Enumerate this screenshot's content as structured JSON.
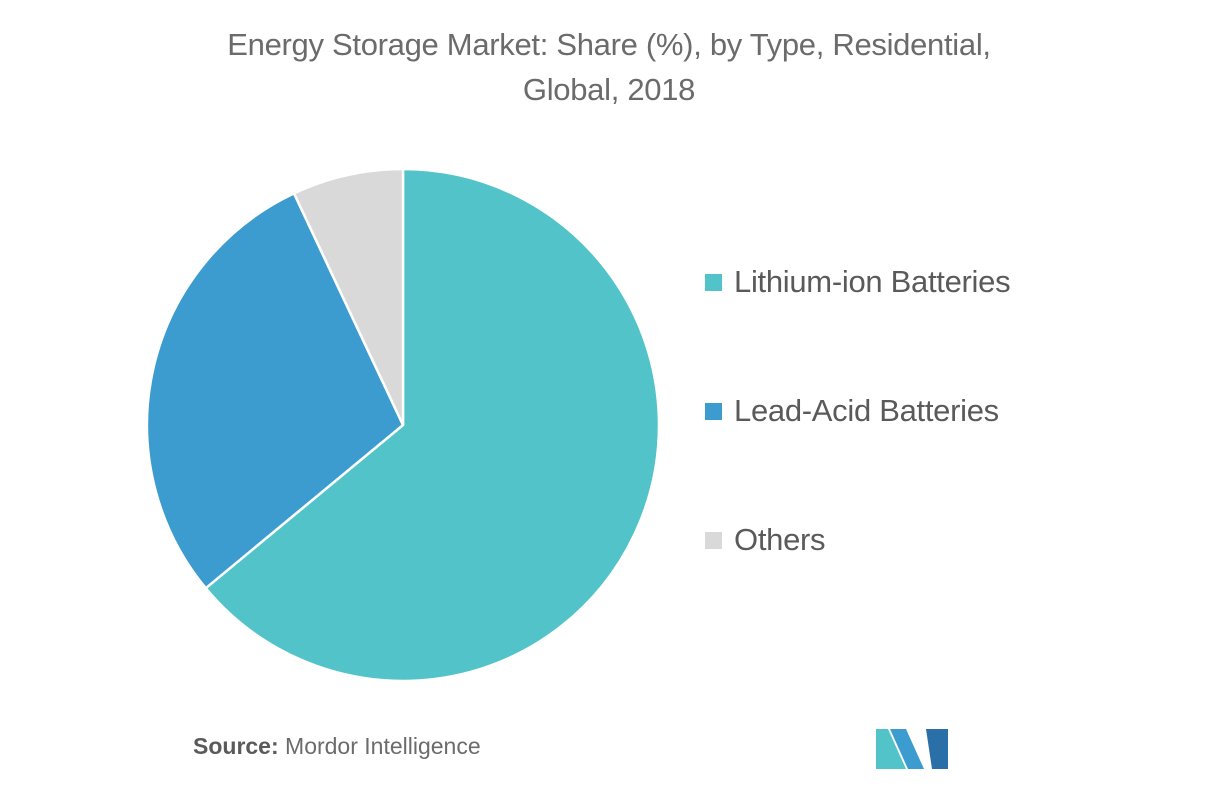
{
  "chart_data": {
    "type": "pie",
    "title_line1": "Energy Storage Market: Share (%), by Type, Residential,",
    "title_line2": "Global, 2018",
    "series": [
      {
        "name": "Lithium-ion Batteries",
        "value": 64,
        "color": "#52c4c9"
      },
      {
        "name": "Lead-Acid Batteries",
        "value": 29,
        "color": "#3d9ccf"
      },
      {
        "name": "Others",
        "value": 7,
        "color": "#d9d9d9"
      }
    ],
    "legend_position": "right"
  },
  "source": {
    "label": "Source:",
    "text": "Mordor Intelligence"
  },
  "logo": {
    "name": "mordor-intelligence-logo",
    "colors": [
      "#52c4c9",
      "#3d9ccf",
      "#2a6fa8"
    ]
  }
}
